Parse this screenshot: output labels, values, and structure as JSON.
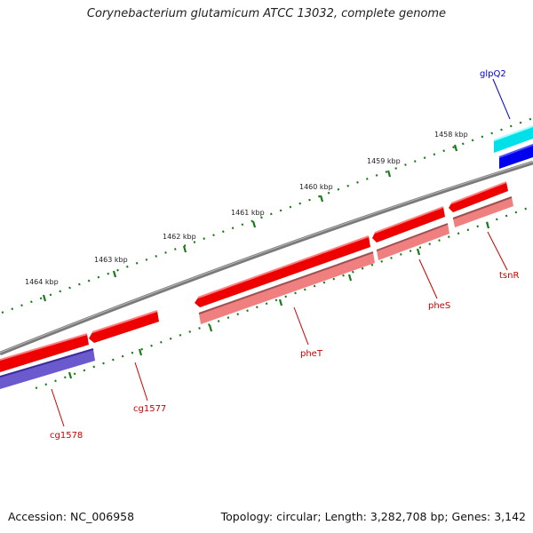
{
  "title": "Corynebacterium glutamicum ATCC 13032, complete genome",
  "footer": {
    "accession": "Accession: NC_006958",
    "summary": "Topology: circular; Length: 3,282,708 bp; Genes: 3,142"
  },
  "scale_labels": [
    "1458 kbp",
    "1459 kbp",
    "1460 kbp",
    "1461 kbp",
    "1462 kbp",
    "1463 kbp",
    "1464 kbp"
  ],
  "genes": [
    {
      "name": "glpQ2",
      "color": "#0000cc"
    },
    {
      "name": "tsnR",
      "color": "#cc0000"
    },
    {
      "name": "pheS",
      "color": "#cc0000"
    },
    {
      "name": "pheT",
      "color": "#cc0000"
    },
    {
      "name": "cg1577",
      "color": "#cc0000"
    },
    {
      "name": "cg1578",
      "color": "#cc0000"
    }
  ],
  "colors": {
    "backbone": "#7a7a7a",
    "ticks": "#1a7a1a",
    "cds_red": "#ee0000",
    "feature_pink": "#f08080",
    "feature_blue": "#0000ee",
    "feature_cyan": "#00e0e8",
    "feature_slate": "#6a5acd"
  }
}
